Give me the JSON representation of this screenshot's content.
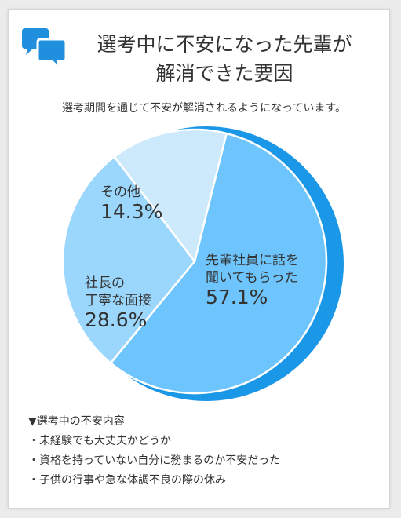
{
  "title": {
    "line1": "選考中に不安になった先輩が",
    "line2": "解消できた要因"
  },
  "subtitle": "選考期間を通じて不安が解消されるようになっています。",
  "icon": "speech-bubbles-icon",
  "colors": {
    "accent": "#1f8fde",
    "shadow": "#1a97e6",
    "slice_1": "#6ec4fc",
    "slice_2": "#9bd6fc",
    "slice_3": "#cdeafd",
    "border": "#ffffff"
  },
  "chart_data": {
    "type": "pie",
    "slices": [
      {
        "label_lines": [
          "先輩社員に話を",
          "聞いてもらった"
        ],
        "value": 57.1,
        "value_label": "57.1%"
      },
      {
        "label_lines": [
          "社長の",
          "丁寧な面接"
        ],
        "value": 28.6,
        "value_label": "28.6%"
      },
      {
        "label_lines": [
          "その他"
        ],
        "value": 14.3,
        "value_label": "14.3%"
      }
    ]
  },
  "notes": {
    "heading": "▼選考中の不安内容",
    "items": [
      "未経験でも大丈夫かどうか",
      "資格を持っていない自分に務まるのか不安だった",
      "子供の行事や急な体調不良の際の休み"
    ]
  }
}
